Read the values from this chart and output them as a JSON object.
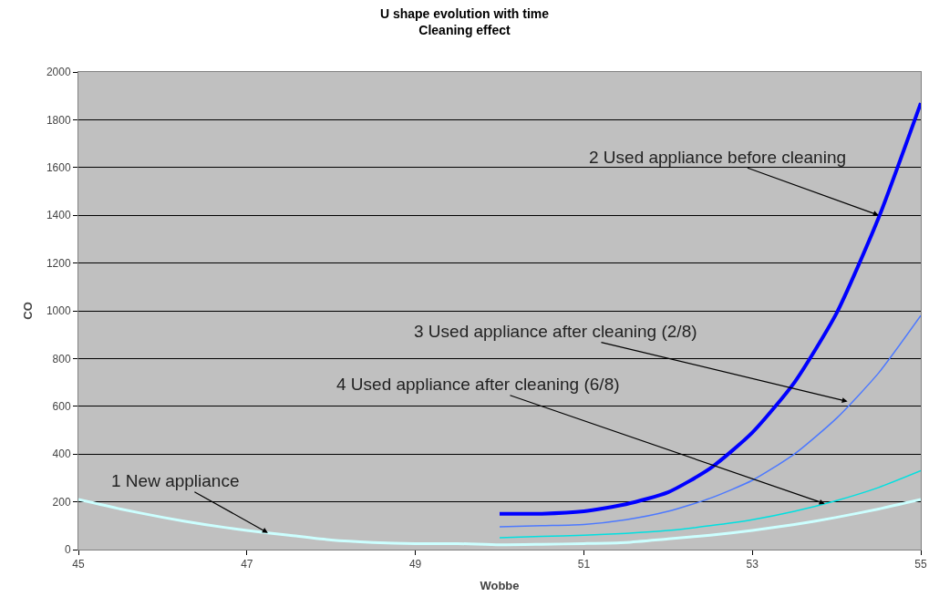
{
  "chart_data": {
    "type": "line",
    "title": "U shape evolution with time",
    "subtitle": "Cleaning effect",
    "xlabel": "Wobbe",
    "ylabel": "CO",
    "xlim": [
      45,
      55
    ],
    "xticks": [
      45,
      47,
      49,
      51,
      53,
      55
    ],
    "ylim": [
      0,
      2000
    ],
    "yticks": [
      0,
      200,
      400,
      600,
      800,
      1000,
      1200,
      1400,
      1600,
      1800,
      2000
    ],
    "grid": "y",
    "marker": "none",
    "series": [
      {
        "color": "#ccffff",
        "x": [
          45,
          45.5,
          46,
          46.5,
          47,
          47.5,
          48,
          48.5,
          49,
          49.5,
          50,
          50.5,
          51,
          51.5,
          52,
          52.5,
          53,
          53.5,
          54,
          54.5,
          55
        ],
        "values": [
          210,
          170,
          135,
          105,
          80,
          60,
          40,
          30,
          25,
          25,
          20,
          22,
          25,
          30,
          45,
          60,
          80,
          105,
          135,
          170,
          210
        ]
      },
      {
        "color": "#0000ff",
        "x": [
          50,
          50.5,
          51,
          51.5,
          52,
          52.5,
          53,
          53.5,
          54,
          54.5,
          55
        ],
        "values": [
          150,
          150,
          160,
          190,
          240,
          340,
          490,
          700,
          990,
          1390,
          1870
        ]
      },
      {
        "color": "#4d79ff",
        "x": [
          50,
          50.5,
          51,
          51.5,
          52,
          52.5,
          53,
          53.5,
          54,
          54.5,
          55
        ],
        "values": [
          95,
          100,
          105,
          125,
          160,
          215,
          290,
          400,
          550,
          740,
          980
        ]
      },
      {
        "color": "#00e0e0",
        "x": [
          50,
          50.5,
          51,
          51.5,
          52,
          52.5,
          53,
          53.5,
          54,
          54.5,
          55
        ],
        "values": [
          50,
          55,
          60,
          68,
          80,
          100,
          125,
          160,
          205,
          260,
          330
        ]
      }
    ],
    "annotations": [
      {
        "text": "1 New appliance",
        "x": 47.25,
        "y": 70
      },
      {
        "text": "2 Used appliance before cleaning",
        "x": 54.5,
        "y": 1400
      },
      {
        "text": "3 Used appliance after cleaning (2/8)",
        "x": 54.13,
        "y": 620
      },
      {
        "text": "4 Used appliance after cleaning (6/8)",
        "x": 53.86,
        "y": 192
      }
    ]
  }
}
